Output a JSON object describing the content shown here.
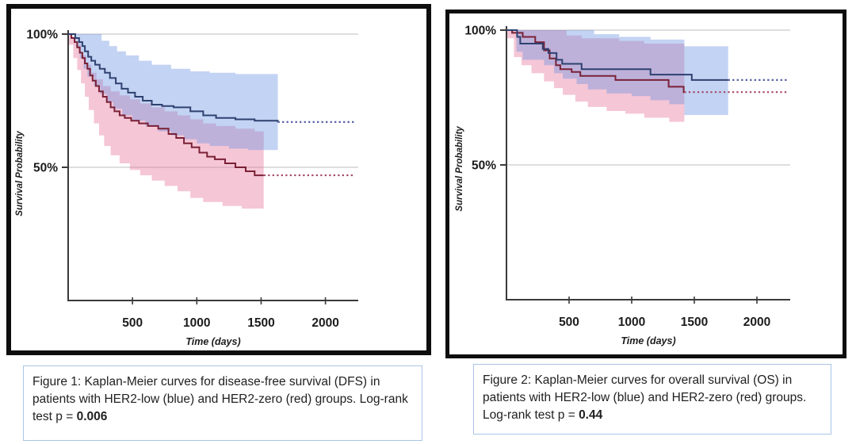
{
  "captions": [
    {
      "text": "Figure 1: Kaplan-Meier curves for disease-free survival (DFS) in patients with HER2-low (blue) and HER2-zero (red) groups. Log-rank test p = ",
      "p_value": "0.006"
    },
    {
      "text": "Figure 2: Kaplan-Meier curves for overall survival (OS) in patients with HER2-low (blue) and HER2-zero (red) groups. Log-rank test p = ",
      "p_value": "0.44"
    }
  ],
  "chart_data": [
    {
      "type": "line",
      "variant": "kaplan-meier-step",
      "xlabel": "Time (days)",
      "ylabel": "Survival Probability",
      "xlim": [
        0,
        2250
      ],
      "ylim": [
        0,
        100
      ],
      "x_ticks": [
        500,
        1000,
        1500,
        2000
      ],
      "y_ticks": [
        {
          "value": 100,
          "label": "100%"
        },
        {
          "value": 50,
          "label": "50%"
        }
      ],
      "grid": "horizontal-at-y-ticks",
      "legend": "none (groups identified by color in caption)",
      "series": [
        {
          "name": "HER2-low",
          "color_key": "blue",
          "line_color": "#2e4170",
          "dotted_color": "#5560a8",
          "band_color": "rgba(105,145,225,0.40)",
          "points": [
            [
              0,
              100
            ],
            [
              55,
              98.5
            ],
            [
              85,
              97
            ],
            [
              110,
              95.5
            ],
            [
              130,
              93.5
            ],
            [
              155,
              91.5
            ],
            [
              180,
              90
            ],
            [
              210,
              88.5
            ],
            [
              245,
              87
            ],
            [
              285,
              85.5
            ],
            [
              325,
              83.5
            ],
            [
              370,
              81.5
            ],
            [
              415,
              79.5
            ],
            [
              465,
              78
            ],
            [
              520,
              76.5
            ],
            [
              580,
              75
            ],
            [
              650,
              73.5
            ],
            [
              730,
              73
            ],
            [
              820,
              72.5
            ],
            [
              950,
              71
            ],
            [
              1050,
              69.5
            ],
            [
              1150,
              68.5
            ],
            [
              1300,
              68
            ],
            [
              1450,
              67.5
            ],
            [
              1630,
              67
            ]
          ],
          "censored_tail": {
            "from_day": 1630,
            "to_day": 2230,
            "level": 67
          },
          "ci_upper": [
            [
              0,
              100
            ],
            [
              200,
              100
            ],
            [
              260,
              97.5
            ],
            [
              320,
              95.5
            ],
            [
              380,
              93.5
            ],
            [
              450,
              92
            ],
            [
              550,
              90
            ],
            [
              650,
              88.5
            ],
            [
              800,
              87
            ],
            [
              950,
              86
            ],
            [
              1100,
              85.5
            ],
            [
              1300,
              85
            ],
            [
              1630,
              85
            ]
          ],
          "ci_lower": [
            [
              0,
              100
            ],
            [
              60,
              95
            ],
            [
              90,
              91
            ],
            [
              120,
              87
            ],
            [
              150,
              84
            ],
            [
              200,
              80.5
            ],
            [
              250,
              77.5
            ],
            [
              300,
              74.5
            ],
            [
              350,
              72
            ],
            [
              420,
              69.5
            ],
            [
              500,
              67.5
            ],
            [
              600,
              65.5
            ],
            [
              700,
              63.5
            ],
            [
              800,
              62
            ],
            [
              900,
              60.5
            ],
            [
              1000,
              59
            ],
            [
              1100,
              58
            ],
            [
              1250,
              57
            ],
            [
              1400,
              56.5
            ],
            [
              1630,
              56
            ]
          ]
        },
        {
          "name": "HER2-zero",
          "color_key": "red",
          "line_color": "#7a2136",
          "dotted_color": "#a64a66",
          "band_color": "rgba(232,118,158,0.42)",
          "points": [
            [
              0,
              100
            ],
            [
              25,
              98.5
            ],
            [
              50,
              97
            ],
            [
              70,
              95
            ],
            [
              90,
              93
            ],
            [
              110,
              91
            ],
            [
              130,
              89
            ],
            [
              150,
              87
            ],
            [
              170,
              84.5
            ],
            [
              190,
              82.5
            ],
            [
              215,
              80.5
            ],
            [
              240,
              78.5
            ],
            [
              270,
              76.5
            ],
            [
              300,
              74.5
            ],
            [
              330,
              72.5
            ],
            [
              360,
              71
            ],
            [
              400,
              69.5
            ],
            [
              440,
              68.5
            ],
            [
              490,
              67.5
            ],
            [
              550,
              66.5
            ],
            [
              620,
              65.5
            ],
            [
              700,
              64.5
            ],
            [
              780,
              62.5
            ],
            [
              840,
              61
            ],
            [
              900,
              59
            ],
            [
              960,
              57.5
            ],
            [
              1020,
              55.5
            ],
            [
              1080,
              54
            ],
            [
              1140,
              53
            ],
            [
              1220,
              51.5
            ],
            [
              1300,
              50
            ],
            [
              1380,
              48.5
            ],
            [
              1450,
              47
            ],
            [
              1520,
              47
            ]
          ],
          "censored_tail": {
            "from_day": 1520,
            "to_day": 2230,
            "level": 47
          },
          "ci_upper": [
            [
              0,
              100
            ],
            [
              30,
              99
            ],
            [
              60,
              96
            ],
            [
              100,
              92
            ],
            [
              140,
              88.5
            ],
            [
              180,
              85.5
            ],
            [
              220,
              83
            ],
            [
              270,
              80.5
            ],
            [
              330,
              78.5
            ],
            [
              400,
              77
            ],
            [
              480,
              75.5
            ],
            [
              560,
              74
            ],
            [
              650,
              72.5
            ],
            [
              750,
              71
            ],
            [
              850,
              69.5
            ],
            [
              950,
              68
            ],
            [
              1050,
              66.5
            ],
            [
              1150,
              65.5
            ],
            [
              1300,
              64.5
            ],
            [
              1450,
              63.5
            ],
            [
              1520,
              63
            ]
          ],
          "ci_lower": [
            [
              0,
              96
            ],
            [
              40,
              91
            ],
            [
              70,
              86.5
            ],
            [
              100,
              81.5
            ],
            [
              130,
              76.5
            ],
            [
              160,
              71.5
            ],
            [
              200,
              66.5
            ],
            [
              240,
              62
            ],
            [
              280,
              58
            ],
            [
              330,
              54.5
            ],
            [
              400,
              51.5
            ],
            [
              480,
              49
            ],
            [
              560,
              47
            ],
            [
              650,
              45
            ],
            [
              750,
              43
            ],
            [
              850,
              41
            ],
            [
              950,
              38.5
            ],
            [
              1050,
              37
            ],
            [
              1200,
              35.5
            ],
            [
              1350,
              34.5
            ],
            [
              1520,
              34
            ]
          ]
        }
      ]
    },
    {
      "type": "line",
      "variant": "kaplan-meier-step",
      "xlabel": "Time (days)",
      "ylabel": "Survival Probability",
      "xlim": [
        0,
        2250
      ],
      "ylim": [
        0,
        100
      ],
      "x_ticks": [
        500,
        1000,
        1500,
        2000
      ],
      "y_ticks": [
        {
          "value": 100,
          "label": "100%"
        },
        {
          "value": 50,
          "label": "50%"
        }
      ],
      "grid": "horizontal-at-y-ticks",
      "legend": "none (groups identified by color in caption)",
      "series": [
        {
          "name": "HER2-low",
          "color_key": "blue",
          "line_color": "#2e4170",
          "dotted_color": "#5560a8",
          "band_color": "rgba(105,145,225,0.40)",
          "points": [
            [
              0,
              100
            ],
            [
              85,
              97.5
            ],
            [
              110,
              95
            ],
            [
              290,
              93
            ],
            [
              335,
              91.5
            ],
            [
              400,
              89
            ],
            [
              445,
              87.5
            ],
            [
              600,
              85.5
            ],
            [
              1150,
              83.5
            ],
            [
              1480,
              81.5
            ],
            [
              1770,
              81.5
            ]
          ],
          "censored_tail": {
            "from_day": 1770,
            "to_day": 2250,
            "level": 81.5
          },
          "ci_upper": [
            [
              0,
              100
            ],
            [
              550,
              100
            ],
            [
              700,
              98.5
            ],
            [
              900,
              97.5
            ],
            [
              1150,
              96.5
            ],
            [
              1420,
              94
            ],
            [
              1770,
              94
            ]
          ],
          "ci_lower": [
            [
              0,
              100
            ],
            [
              80,
              92
            ],
            [
              130,
              89
            ],
            [
              300,
              87
            ],
            [
              380,
              84
            ],
            [
              450,
              82
            ],
            [
              560,
              80
            ],
            [
              650,
              78
            ],
            [
              800,
              76.5
            ],
            [
              1000,
              75.5
            ],
            [
              1150,
              74
            ],
            [
              1300,
              72.5
            ],
            [
              1420,
              68.5
            ],
            [
              1770,
              68.5
            ]
          ]
        },
        {
          "name": "HER2-zero",
          "color_key": "red",
          "line_color": "#7a2136",
          "dotted_color": "#a64a66",
          "band_color": "rgba(232,118,158,0.42)",
          "points": [
            [
              0,
              100
            ],
            [
              45,
              99
            ],
            [
              130,
              97.5
            ],
            [
              230,
              95.5
            ],
            [
              300,
              92.5
            ],
            [
              345,
              89.5
            ],
            [
              395,
              87
            ],
            [
              430,
              85.5
            ],
            [
              520,
              84.5
            ],
            [
              590,
              83
            ],
            [
              870,
              81.5
            ],
            [
              1295,
              79
            ],
            [
              1415,
              77
            ],
            [
              1420,
              77
            ]
          ],
          "censored_tail": {
            "from_day": 1420,
            "to_day": 2250,
            "level": 77
          },
          "ci_upper": [
            [
              0,
              100
            ],
            [
              400,
              100
            ],
            [
              480,
              98
            ],
            [
              600,
              97
            ],
            [
              900,
              96
            ],
            [
              1100,
              95
            ],
            [
              1420,
              93.5
            ]
          ],
          "ci_lower": [
            [
              0,
              97
            ],
            [
              60,
              90
            ],
            [
              120,
              87
            ],
            [
              200,
              84
            ],
            [
              300,
              81
            ],
            [
              380,
              78.5
            ],
            [
              450,
              76
            ],
            [
              550,
              73.5
            ],
            [
              650,
              71.5
            ],
            [
              800,
              70
            ],
            [
              950,
              69
            ],
            [
              1100,
              67.5
            ],
            [
              1300,
              66
            ],
            [
              1420,
              64
            ]
          ]
        }
      ]
    }
  ],
  "style_tokens": {
    "frame_border_color": "#0e0e0e",
    "caption_border_color": "#a9c5e6",
    "gridline_color": "#c9c9c9",
    "axis_color": "#3a3a3a",
    "label_color": "#1c1c1c"
  }
}
